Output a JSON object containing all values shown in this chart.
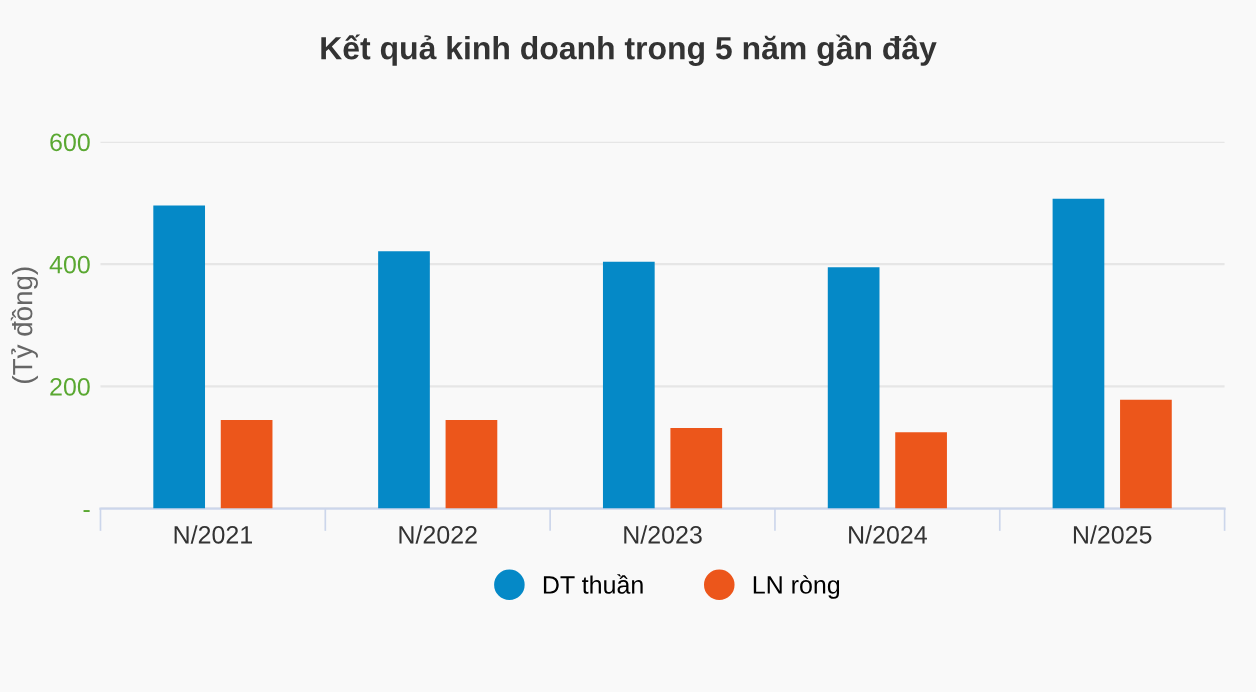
{
  "chart_data": {
    "type": "bar",
    "title": "Kết quả kinh doanh trong 5 năm gần đây",
    "ylabel": "(Tỷ đồng)",
    "categories": [
      "N/2021",
      "N/2022",
      "N/2023",
      "N/2024",
      "N/2025"
    ],
    "series": [
      {
        "name": "DT thuần",
        "color": "#0589c7",
        "values": [
          496,
          421,
          404,
          395,
          507
        ]
      },
      {
        "name": "LN ròng",
        "color": "#ec561b",
        "values": [
          145,
          145,
          132,
          125,
          178
        ]
      }
    ],
    "ylim": [
      0,
      600
    ],
    "yticks": [
      {
        "value": 0,
        "label": "-"
      },
      200,
      400,
      600
    ],
    "grid": "y",
    "legend": "bottom"
  }
}
